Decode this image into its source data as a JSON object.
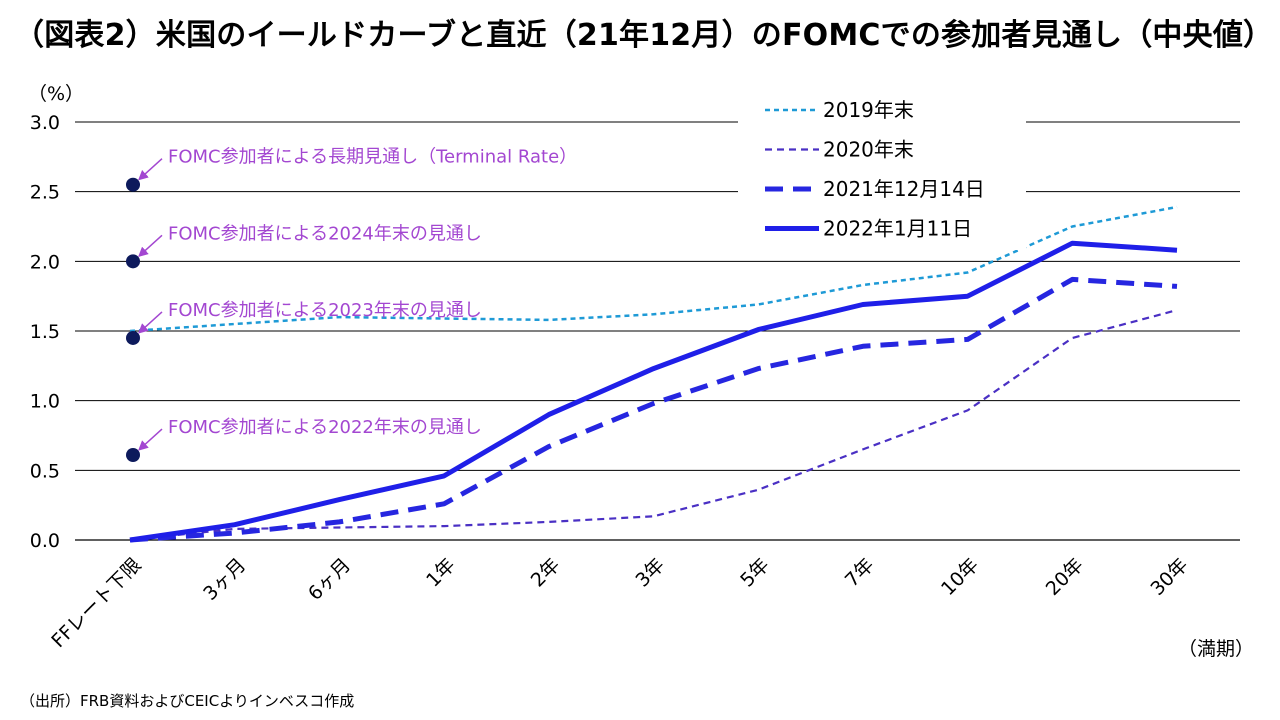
{
  "title": "（図表2）米国のイールドカーブと直近（21年12月）のFOMCでの参加者見通し（中央値）",
  "source": "（出所）FRB資料およびCEICよりインベスコ作成",
  "colors": {
    "series_2019": "#1e9ad6",
    "series_2020": "#4a30c4",
    "series_2021": "#2626e0",
    "series_2022": "#1f1fe8",
    "dots": "#0d1a5c",
    "annotation": "#a347d1",
    "grid": "#000000"
  },
  "chart_data": {
    "type": "line",
    "title": "（図表2）米国のイールドカーブと直近（21年12月）のFOMCでの参加者見通し（中央値）",
    "ylabel": "（%）",
    "xlabel": "（満期）",
    "ylim": [
      0,
      3.0
    ],
    "yticks": [
      "0.0",
      "0.5",
      "1.0",
      "1.5",
      "2.0",
      "2.5",
      "3.0"
    ],
    "ytick_values": [
      0,
      0.5,
      1.0,
      1.5,
      2.0,
      2.5,
      3.0
    ],
    "categories": [
      "FFレート下限",
      "3ヶ月",
      "6ヶ月",
      "1年",
      "2年",
      "3年",
      "5年",
      "7年",
      "10年",
      "20年",
      "30年"
    ],
    "grid": true,
    "legend_position": "top-right",
    "series": [
      {
        "name": "2019年末",
        "style": "dotted",
        "color_key": "series_2019",
        "values": [
          1.5,
          1.55,
          1.6,
          1.59,
          1.58,
          1.62,
          1.69,
          1.83,
          1.92,
          2.25,
          2.39
        ]
      },
      {
        "name": "2020年末",
        "style": "dashed-thin",
        "color_key": "series_2020",
        "values": [
          0.0,
          0.08,
          0.09,
          0.1,
          0.13,
          0.17,
          0.36,
          0.65,
          0.93,
          1.45,
          1.65
        ]
      },
      {
        "name": "2021年12月14日",
        "style": "dashed-thick",
        "color_key": "series_2021",
        "values": [
          0.0,
          0.05,
          0.13,
          0.26,
          0.67,
          0.98,
          1.23,
          1.39,
          1.44,
          1.87,
          1.82
        ]
      },
      {
        "name": "2022年1月11日",
        "style": "solid",
        "color_key": "series_2022",
        "values": [
          0.0,
          0.11,
          0.29,
          0.46,
          0.9,
          1.23,
          1.51,
          1.69,
          1.75,
          2.13,
          2.08
        ]
      }
    ],
    "projections": [
      {
        "label": "FOMC参加者による長期見通し（Terminal Rate）",
        "value": 2.55
      },
      {
        "label": "FOMC参加者による2024年末の見通し",
        "value": 2.0
      },
      {
        "label": "FOMC参加者による2023年末の見通し",
        "value": 1.45
      },
      {
        "label": "FOMC参加者による2022年末の見通し",
        "value": 0.61
      }
    ]
  }
}
